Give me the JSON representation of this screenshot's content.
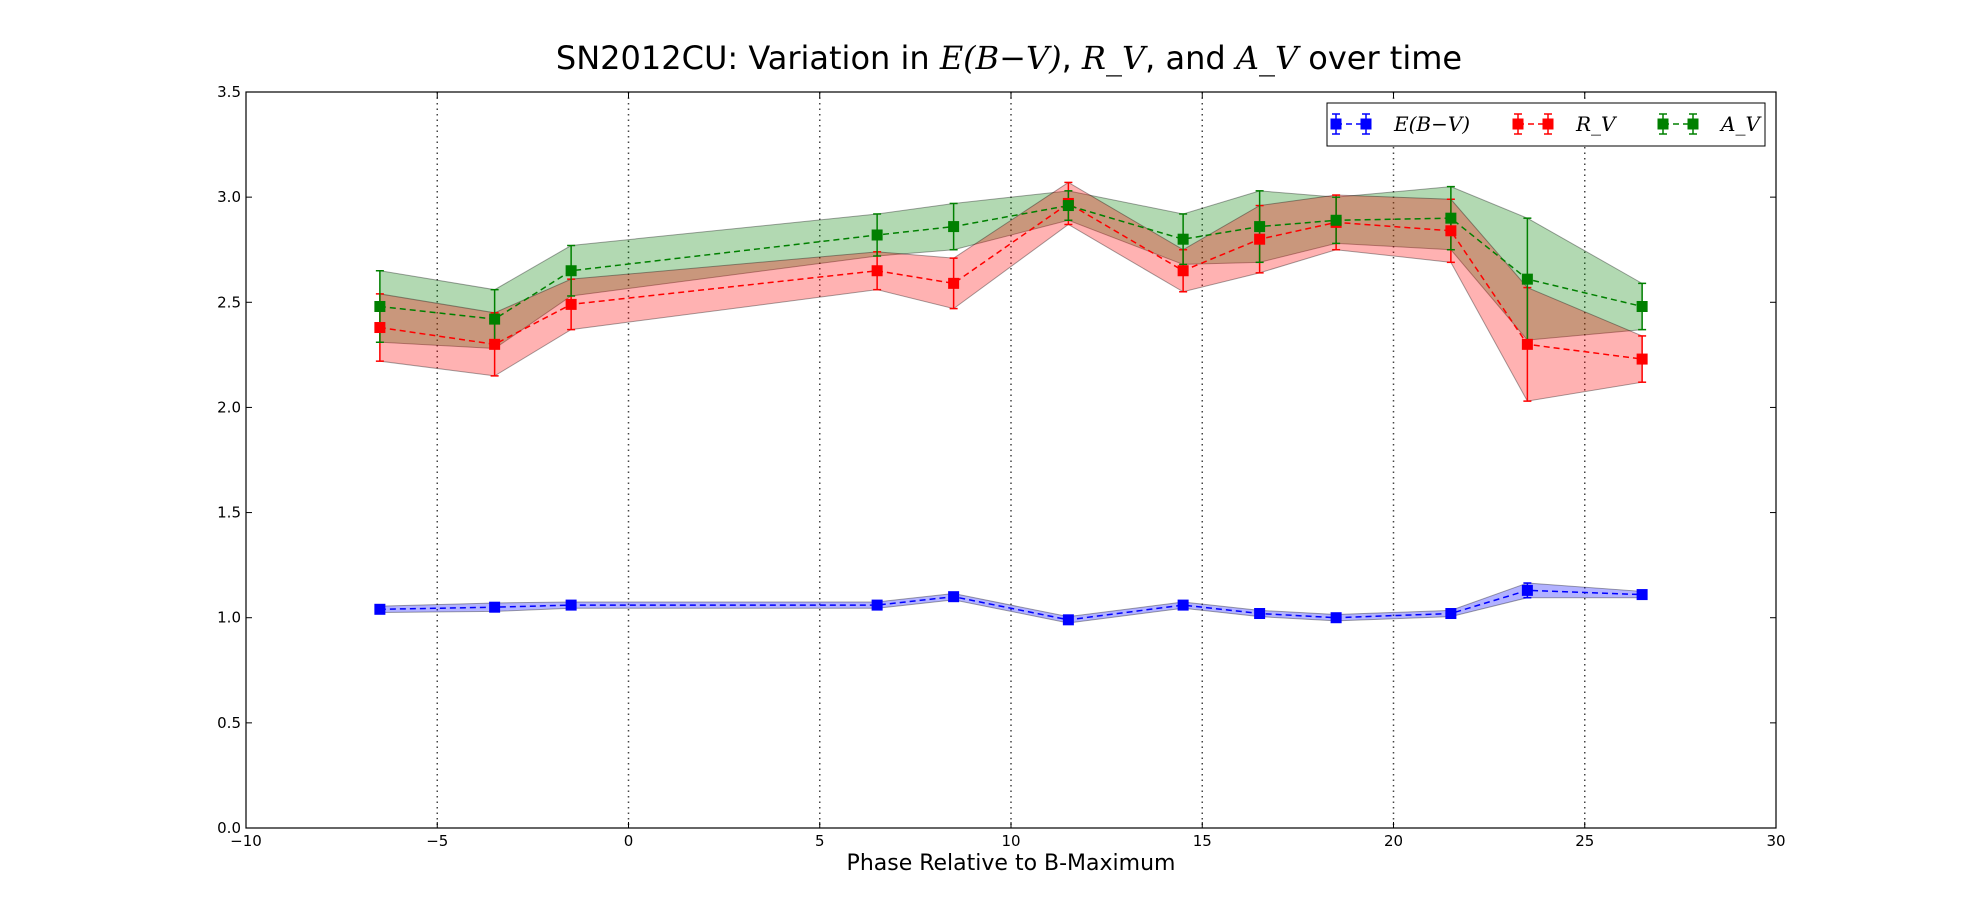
{
  "chart_data": {
    "type": "line",
    "title_prefix": "SN2012CU: Variation in ",
    "title_sep1": ", ",
    "title_sep2": ", and ",
    "title_suffix": " over time",
    "xlabel": "Phase Relative to B-Maximum",
    "ylabel": "",
    "xlim": [
      -10,
      30
    ],
    "ylim": [
      0.0,
      3.5
    ],
    "x_ticks": [
      -10,
      -5,
      0,
      5,
      10,
      15,
      20,
      25,
      30
    ],
    "x_tick_labels": [
      "−10",
      "−5",
      "0",
      "5",
      "10",
      "15",
      "20",
      "25",
      "30"
    ],
    "y_ticks": [
      0.0,
      0.5,
      1.0,
      1.5,
      2.0,
      2.5,
      3.0,
      3.5
    ],
    "y_tick_labels": [
      "0.0",
      "0.5",
      "1.0",
      "1.5",
      "2.0",
      "2.5",
      "3.0",
      "3.5"
    ],
    "vertical_gridlines": [
      -5,
      0,
      5,
      10,
      15,
      20,
      25
    ],
    "legend_position": "top-right",
    "x": [
      -6.5,
      -3.5,
      -1.5,
      6.5,
      8.5,
      11.5,
      14.5,
      16.5,
      18.5,
      21.5,
      23.5,
      26.5
    ],
    "series": [
      {
        "name": "E(B−V)",
        "color": "#0000ff",
        "values": [
          1.04,
          1.05,
          1.06,
          1.06,
          1.1,
          0.99,
          1.06,
          1.02,
          1.0,
          1.02,
          1.13,
          1.11
        ],
        "errors": [
          0.015,
          0.02,
          0.015,
          0.015,
          0.015,
          0.015,
          0.015,
          0.015,
          0.015,
          0.015,
          0.035,
          0.015
        ]
      },
      {
        "name": "R_V",
        "color": "#ff0000",
        "values": [
          2.38,
          2.3,
          2.49,
          2.65,
          2.59,
          2.97,
          2.65,
          2.8,
          2.88,
          2.84,
          2.3,
          2.23
        ],
        "errors": [
          0.16,
          0.15,
          0.12,
          0.09,
          0.12,
          0.1,
          0.1,
          0.16,
          0.13,
          0.15,
          0.27,
          0.11
        ]
      },
      {
        "name": "A_V",
        "color": "#008000",
        "values": [
          2.48,
          2.42,
          2.65,
          2.82,
          2.86,
          2.96,
          2.8,
          2.86,
          2.89,
          2.9,
          2.61,
          2.48
        ],
        "errors": [
          0.17,
          0.14,
          0.12,
          0.1,
          0.11,
          0.07,
          0.12,
          0.17,
          0.11,
          0.15,
          0.29,
          0.11
        ]
      }
    ]
  }
}
